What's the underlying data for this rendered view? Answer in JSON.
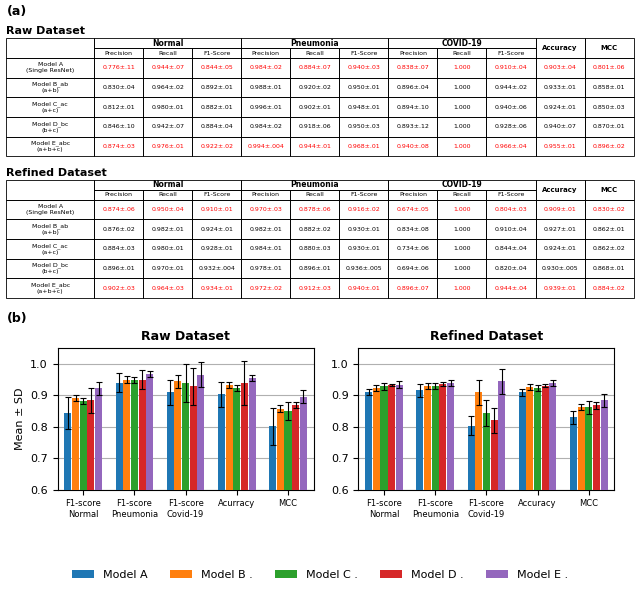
{
  "chart_data": [
    {
      "type": "table",
      "title": "Raw Dataset",
      "annotations": [
        "(a)"
      ],
      "columns": [
        {
          "group": "Normal",
          "label": "Precision"
        },
        {
          "group": "Normal",
          "label": "Recall"
        },
        {
          "group": "Normal",
          "label": "F1-Score"
        },
        {
          "group": "Pneumonia",
          "label": "Precision"
        },
        {
          "group": "Pneumonia",
          "label": "Recall"
        },
        {
          "group": "Pneumonia",
          "label": "F1-Score"
        },
        {
          "group": "COVID-19",
          "label": "Precision"
        },
        {
          "group": "COVID-19",
          "label": "Recall"
        },
        {
          "group": "COVID-19",
          "label": "F1-Score"
        },
        {
          "label": "Accuracy"
        },
        {
          "label": "MCC"
        }
      ],
      "series": [
        {
          "name": "Model A\n(Single ResNet)",
          "color": "#FF0000",
          "values": [
            "0.776±.11",
            "0.944±.07",
            "0.844±.05",
            "0.984±.02",
            "0.884±.07",
            "0.940±.03",
            "0.838±.07",
            "1.000",
            "0.910±.04",
            "0.903±.04",
            "0.801±.06"
          ]
        },
        {
          "name": "Model B_ab\n(a+b)",
          "color": "#000000",
          "values": [
            "0.830±.04",
            "0.964±.02",
            "0.892±.01",
            "0.988±.01",
            "0.920±.02",
            "0.950±.01",
            "0.896±.04",
            "1.000",
            "0.944±.02",
            "0.933±.01",
            "0.858±.01"
          ]
        },
        {
          "name": "Model C_ac\n(a+c)",
          "color": "#000000",
          "values": [
            "0.812±.01",
            "0.980±.01",
            "0.882±.01",
            "0.996±.01",
            "0.902±.01",
            "0.948±.01",
            "0.894±.10",
            "1.000",
            "0.940±.06",
            "0.924±.01",
            "0.850±.03"
          ]
        },
        {
          "name": "Model D_bc\n(b+c)",
          "color": "#000000",
          "values": [
            "0.846±.10",
            "0.942±.07",
            "0.884±.04",
            "0.984±.02",
            "0.918±.06",
            "0.950±.03",
            "0.893±.12",
            "1.000",
            "0.928±.06",
            "0.940±.07",
            "0.870±.01"
          ]
        },
        {
          "name": "Model E_abc\n(a+b+c)",
          "color": "#FF0000",
          "values": [
            "0.874±.03",
            "0.976±.01",
            "0.922±.02",
            "0.994±.004",
            "0.944±.01",
            "0.968±.01",
            "0.940±.08",
            "1.000",
            "0.966±.04",
            "0.955±.01",
            "0.896±.02"
          ]
        }
      ]
    },
    {
      "type": "table",
      "title": "Refined Dataset",
      "columns": [
        {
          "group": "Normal",
          "label": "Precision"
        },
        {
          "group": "Normal",
          "label": "Recall"
        },
        {
          "group": "Normal",
          "label": "F1-Score"
        },
        {
          "group": "Pneumonia",
          "label": "Precision"
        },
        {
          "group": "Pneumonia",
          "label": "Recall"
        },
        {
          "group": "Pneumonia",
          "label": "F1-Score"
        },
        {
          "group": "COVID-19",
          "label": "Precision"
        },
        {
          "group": "COVID-19",
          "label": "Recall"
        },
        {
          "group": "COVID-19",
          "label": "F1-Score"
        },
        {
          "label": "Accuracy"
        },
        {
          "label": "MCC"
        }
      ],
      "series": [
        {
          "name": "Model A\n(Single ResNet)",
          "color": "#FF0000",
          "values": [
            "0.874±.06",
            "0.950±.04",
            "0.910±.01",
            "0.970±.03",
            "0.878±.06",
            "0.916±.02",
            "0.674±.05",
            "1.000",
            "0.804±.03",
            "0.909±.01",
            "0.830±.02"
          ]
        },
        {
          "name": "Model B_ab\n(a+b)",
          "color": "#000000",
          "values": [
            "0.876±.02",
            "0.982±.01",
            "0.924±.01",
            "0.982±.01",
            "0.882±.02",
            "0.930±.01",
            "0.834±.08",
            "1.000",
            "0.910±.04",
            "0.927±.01",
            "0.862±.01"
          ]
        },
        {
          "name": "Model C_ac\n(a+c)",
          "color": "#000000",
          "values": [
            "0.884±.03",
            "0.980±.01",
            "0.928±.01",
            "0.984±.01",
            "0.880±.03",
            "0.930±.01",
            "0.734±.06",
            "1.000",
            "0.844±.04",
            "0.924±.01",
            "0.862±.02"
          ]
        },
        {
          "name": "Model D_bc\n(b+c)",
          "color": "#000000",
          "values": [
            "0.896±.01",
            "0.970±.01",
            "0.932±.004",
            "0.978±.01",
            "0.896±.01",
            "0.936±.005",
            "0.694±.06",
            "1.000",
            "0.820±.04",
            "0.930±.005",
            "0.868±.01"
          ]
        },
        {
          "name": "Model E_abc\n(a+b+c)",
          "color": "#FF0000",
          "values": [
            "0.902±.03",
            "0.964±.03",
            "0.934±.01",
            "0.972±.02",
            "0.912±.03",
            "0.940±.01",
            "0.896±.07",
            "1.000",
            "0.944±.04",
            "0.939±.01",
            "0.884±.02"
          ]
        }
      ]
    },
    {
      "type": "bar",
      "title": "Raw Dataset",
      "annotations": [
        "(b)"
      ],
      "ylabel": "Mean ± SD",
      "categories": [
        "F1-score\nNormal",
        "F1-score\nPneumonia",
        "F1-score\nCovid-19",
        "Acurracy",
        "MCC"
      ],
      "ylim": [
        0.6,
        1.05
      ],
      "yticks": [
        0.6,
        0.7,
        0.8,
        0.9,
        1.0
      ],
      "grid": true,
      "legend": "lower center",
      "series": [
        {
          "name": "Model A",
          "values": [
            0.844,
            0.94,
            0.91,
            0.903,
            0.801
          ],
          "errors": [
            0.05,
            0.03,
            0.04,
            0.04,
            0.06
          ]
        },
        {
          "name": "Model B .",
          "values": [
            0.892,
            0.95,
            0.944,
            0.933,
            0.858
          ],
          "errors": [
            0.01,
            0.01,
            0.02,
            0.01,
            0.01
          ]
        },
        {
          "name": "Model C .",
          "values": [
            0.882,
            0.948,
            0.94,
            0.924,
            0.85
          ],
          "errors": [
            0.01,
            0.01,
            0.06,
            0.01,
            0.03
          ]
        },
        {
          "name": "Model D .",
          "values": [
            0.884,
            0.95,
            0.928,
            0.94,
            0.87
          ],
          "errors": [
            0.04,
            0.03,
            0.06,
            0.07,
            0.01
          ]
        },
        {
          "name": "Model E .",
          "values": [
            0.922,
            0.968,
            0.966,
            0.955,
            0.896
          ],
          "errors": [
            0.02,
            0.01,
            0.04,
            0.01,
            0.02
          ]
        }
      ]
    },
    {
      "type": "bar",
      "title": "Refined Dataset",
      "categories": [
        "F1-score\nNormal",
        "F1-score\nPneumonia",
        "F1-score\nCovid-19",
        "Accuracy",
        "MCC"
      ],
      "ylim": [
        0.6,
        1.05
      ],
      "yticks": [
        0.6,
        0.7,
        0.8,
        0.9,
        1.0
      ],
      "grid": true,
      "series": [
        {
          "values": [
            0.91,
            0.916,
            0.804,
            0.909,
            0.83
          ],
          "errors": [
            0.01,
            0.02,
            0.03,
            0.01,
            0.02
          ]
        },
        {
          "values": [
            0.924,
            0.93,
            0.91,
            0.927,
            0.862
          ],
          "errors": [
            0.01,
            0.01,
            0.04,
            0.01,
            0.01
          ]
        },
        {
          "values": [
            0.928,
            0.93,
            0.844,
            0.924,
            0.862
          ],
          "errors": [
            0.01,
            0.01,
            0.04,
            0.01,
            0.02
          ]
        },
        {
          "values": [
            0.932,
            0.936,
            0.82,
            0.93,
            0.868
          ],
          "errors": [
            0.004,
            0.005,
            0.04,
            0.005,
            0.01
          ]
        },
        {
          "values": [
            0.934,
            0.94,
            0.944,
            0.939,
            0.884
          ],
          "errors": [
            0.01,
            0.01,
            0.04,
            0.01,
            0.02
          ]
        }
      ]
    }
  ]
}
